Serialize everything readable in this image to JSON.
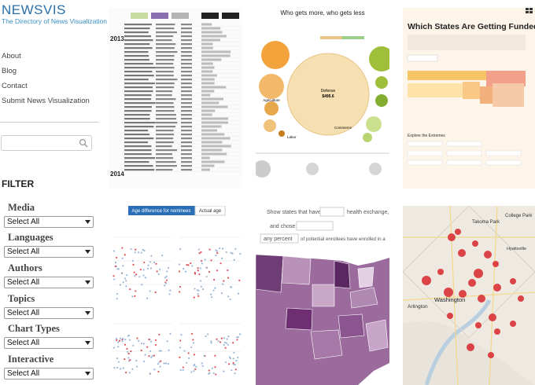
{
  "header": {
    "title": "NEWSVIS",
    "subtitle": "The Directory of News Visualization"
  },
  "nav": [
    "About",
    "Blog",
    "Contact",
    "Submit News Visualization"
  ],
  "filter": {
    "title": "FILTER",
    "groups": [
      {
        "label": "Media",
        "value": "Select All"
      },
      {
        "label": "Languages",
        "value": "Select All"
      },
      {
        "label": "Authors",
        "value": "Select All"
      },
      {
        "label": "Topics",
        "value": "Select All"
      },
      {
        "label": "Chart Types",
        "value": "Select All"
      },
      {
        "label": "Interactive",
        "value": "Select All"
      }
    ]
  },
  "thumbnails": [
    {
      "years": [
        "2013",
        "2014"
      ]
    },
    {
      "title": "Who gets more, who gets less",
      "bubbles": [
        "Defense",
        "$495.6",
        "Agriculture",
        "Labor",
        "Commerce"
      ]
    },
    {
      "title": "Which States Are Getting Funded?",
      "subtitle": "Explore the Extremes"
    },
    {
      "tabs": [
        "Age difference for nominees",
        "Actual age"
      ]
    },
    {
      "text": [
        "Show states that have a",
        "health exchange,",
        "and chose",
        "of potential enrollees have enrolled in a"
      ],
      "dropdown": "any percent"
    },
    {
      "labels": [
        "Takoma Park",
        "College Park",
        "Hyattsville",
        "Arlington",
        "Washington"
      ]
    }
  ]
}
